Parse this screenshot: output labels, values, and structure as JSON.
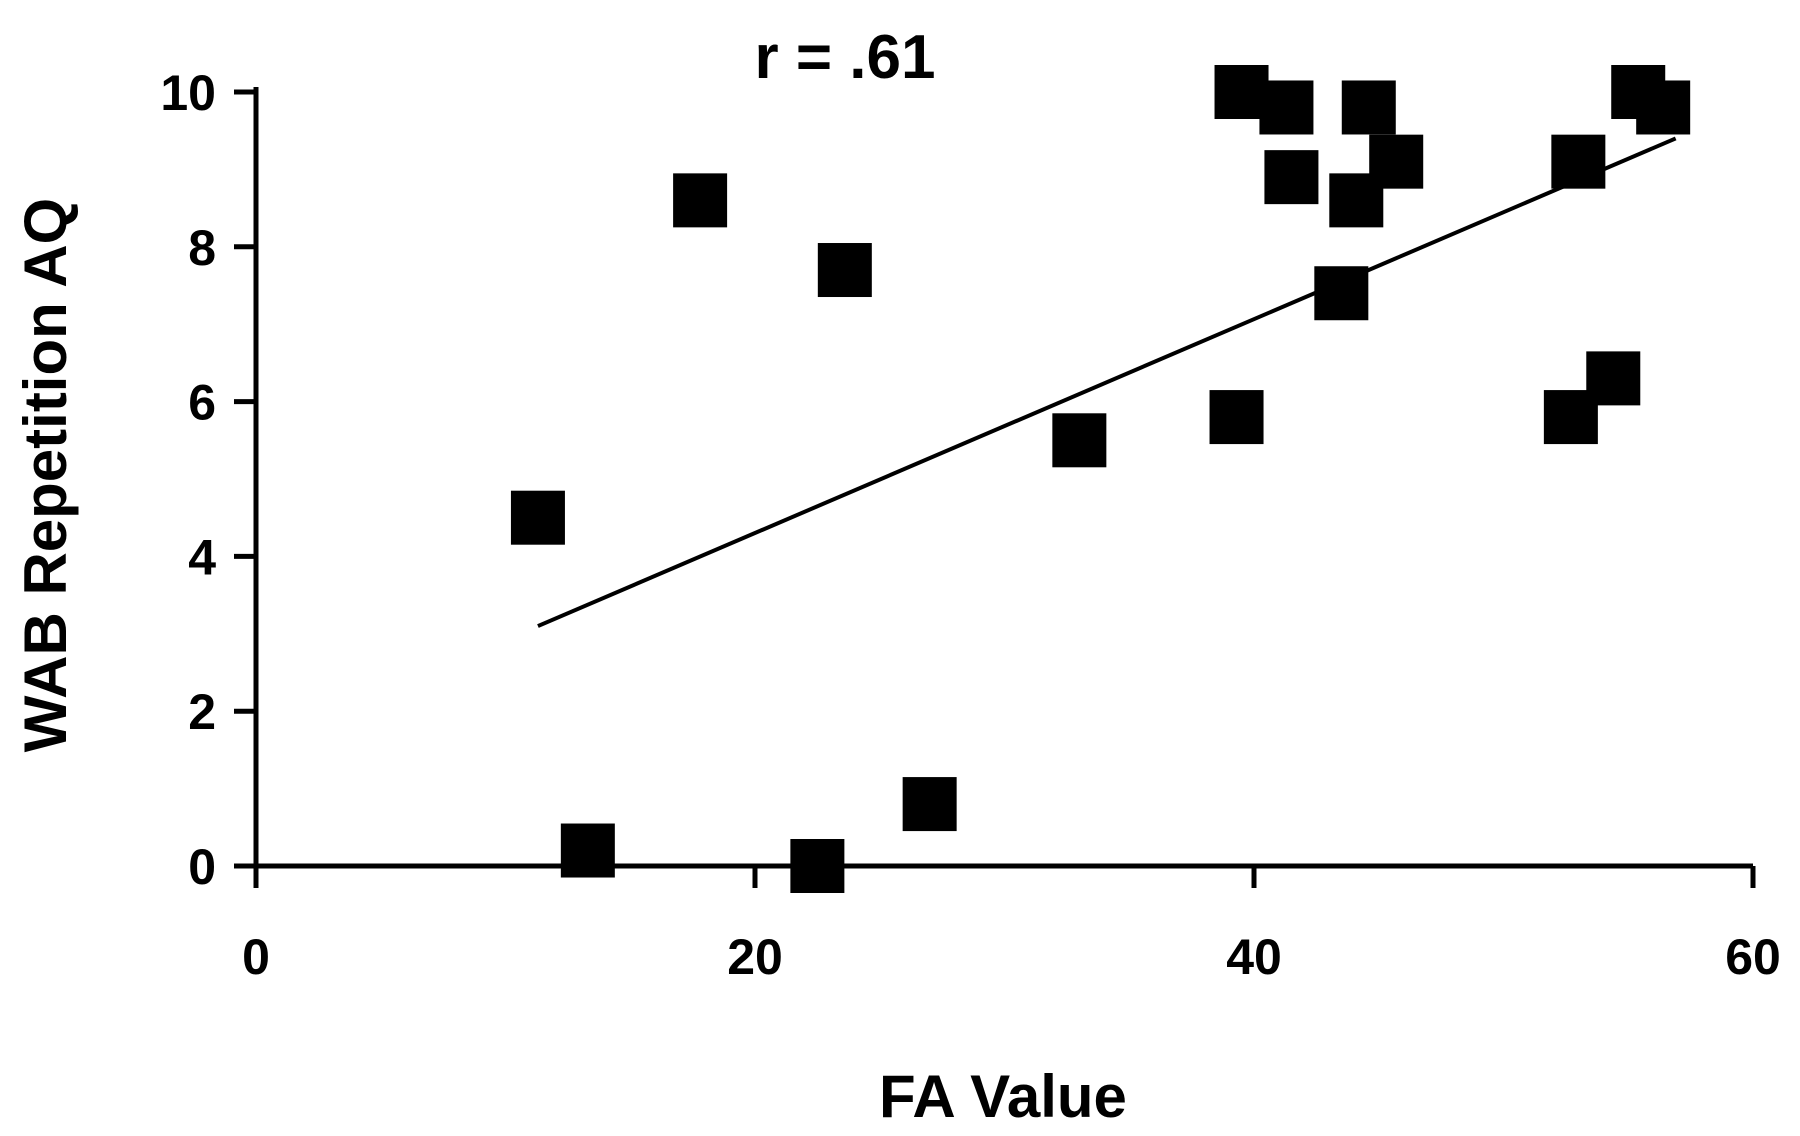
{
  "chart_data": {
    "type": "scatter",
    "title": "",
    "annotation": "r = .61",
    "xlabel": "FA Value",
    "ylabel": "WAB Repetition AQ",
    "xlim": [
      0,
      60
    ],
    "ylim": [
      0,
      10
    ],
    "x_ticks": [
      "0",
      "20",
      "40",
      "60"
    ],
    "y_ticks": [
      "0",
      "2",
      "4",
      "6",
      "8",
      "10"
    ],
    "grid": false,
    "legend": "none",
    "marker": "square",
    "color": "#000000",
    "points": [
      {
        "x": 11.3,
        "y": 4.5
      },
      {
        "x": 13.3,
        "y": 0.2
      },
      {
        "x": 17.8,
        "y": 8.6
      },
      {
        "x": 22.5,
        "y": 0.0
      },
      {
        "x": 23.6,
        "y": 7.7
      },
      {
        "x": 27.0,
        "y": 0.8
      },
      {
        "x": 33.0,
        "y": 5.5
      },
      {
        "x": 39.3,
        "y": 5.8
      },
      {
        "x": 39.5,
        "y": 10.0
      },
      {
        "x": 41.3,
        "y": 9.8
      },
      {
        "x": 41.5,
        "y": 8.9
      },
      {
        "x": 43.5,
        "y": 7.4
      },
      {
        "x": 44.1,
        "y": 8.6
      },
      {
        "x": 44.6,
        "y": 9.8
      },
      {
        "x": 45.7,
        "y": 9.1
      },
      {
        "x": 52.7,
        "y": 5.8
      },
      {
        "x": 53.0,
        "y": 9.1
      },
      {
        "x": 54.4,
        "y": 6.3
      },
      {
        "x": 55.4,
        "y": 10.0
      },
      {
        "x": 56.4,
        "y": 9.8
      }
    ],
    "trendline": {
      "x": [
        11.3,
        56.9
      ],
      "y": [
        3.1,
        9.4
      ]
    }
  }
}
